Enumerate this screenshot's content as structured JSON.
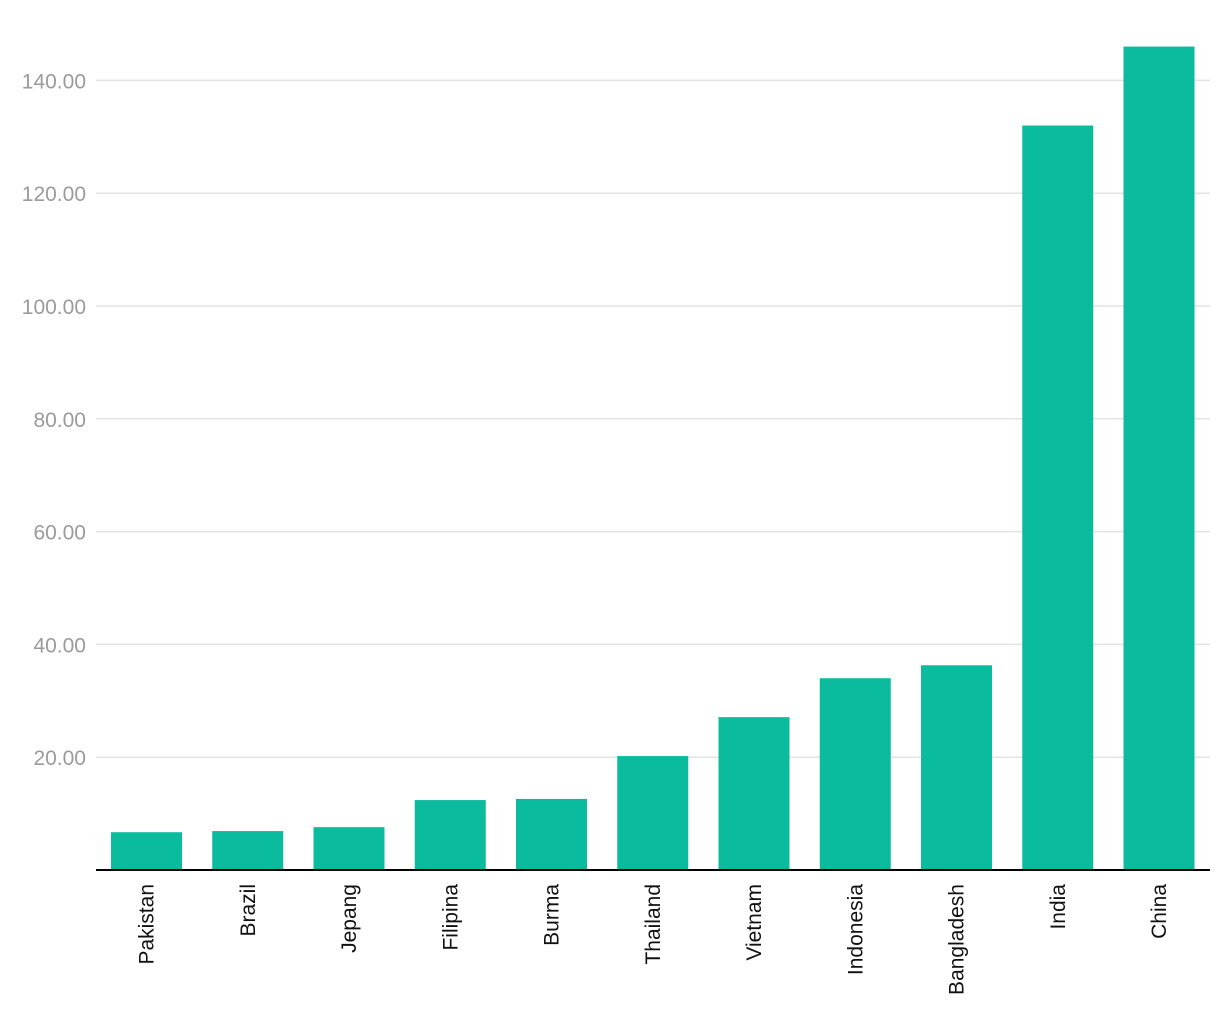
{
  "chart_data": {
    "type": "bar",
    "title": "",
    "xlabel": "",
    "ylabel": "",
    "categories": [
      "Pakistan",
      "Brazil",
      "Jepang",
      "Filipina",
      "Burma",
      "Thailand",
      "Vietnam",
      "Indonesia",
      "Bangladesh",
      "India",
      "China"
    ],
    "values": [
      6.7,
      6.9,
      7.6,
      12.4,
      12.6,
      20.2,
      27.1,
      34.0,
      36.3,
      132.0,
      146.0
    ],
    "ylim": [
      0,
      150
    ],
    "y_ticks": [
      20,
      40,
      60,
      80,
      100,
      120,
      140
    ],
    "y_tick_labels": [
      "20.00",
      "40.00",
      "60.00",
      "80.00",
      "100.00",
      "120.00",
      "140.00"
    ],
    "grid": true,
    "legend": "none",
    "bar_color": "#0bbb9e"
  }
}
